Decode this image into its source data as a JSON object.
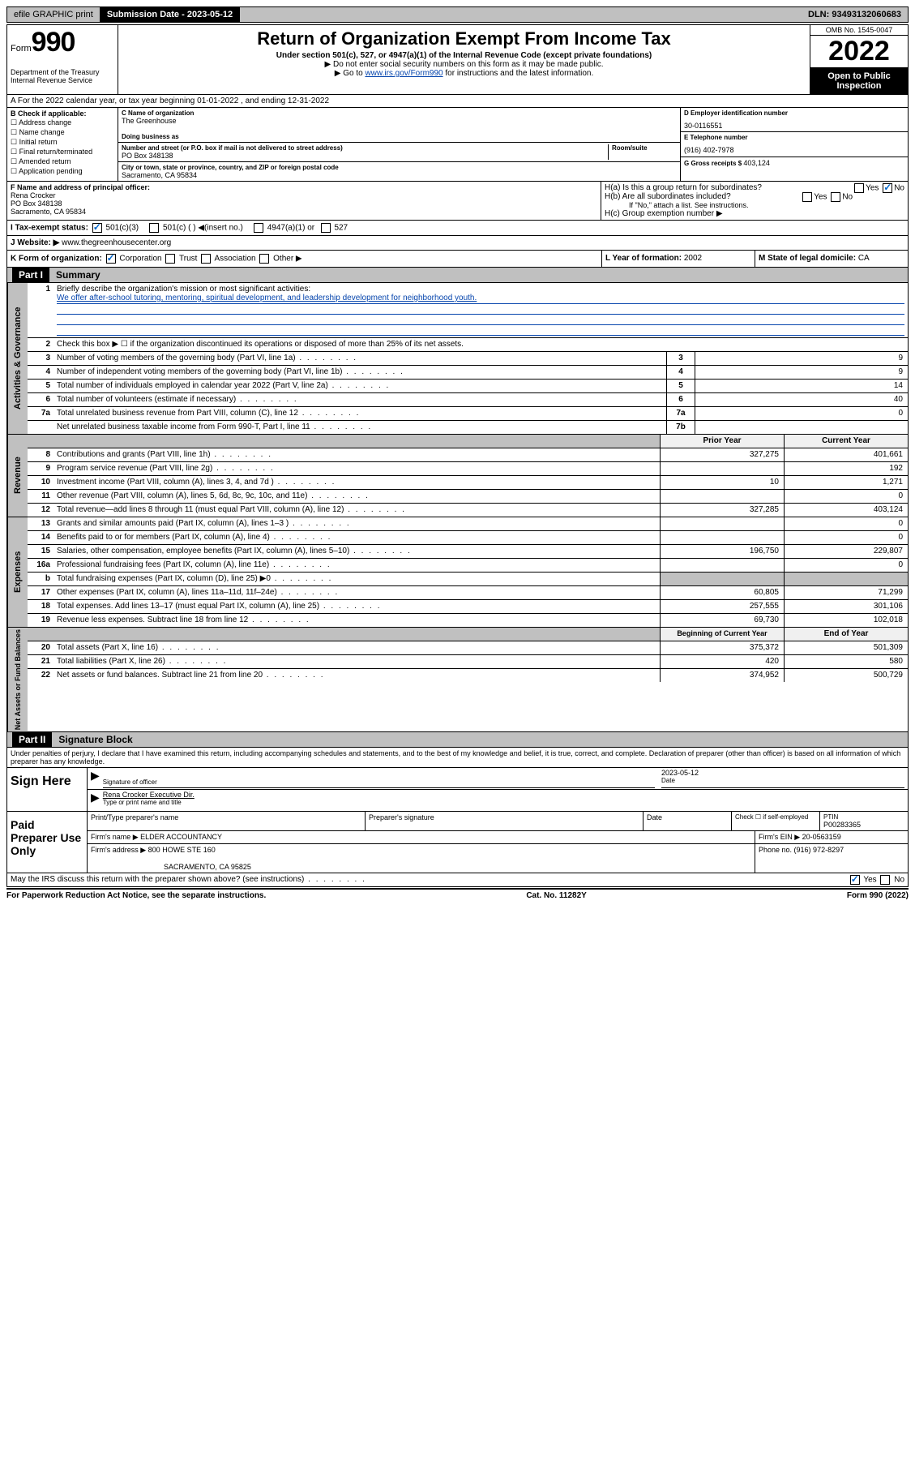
{
  "topbar": {
    "efile": "efile GRAPHIC print",
    "submission_label": "Submission Date - ",
    "submission_date": "2023-05-12",
    "dln_label": "DLN: ",
    "dln": "93493132060683"
  },
  "header": {
    "form_label": "Form",
    "form_number": "990",
    "dept": "Department of the Treasury\nInternal Revenue Service",
    "title": "Return of Organization Exempt From Income Tax",
    "sub": "Under section 501(c), 527, or 4947(a)(1) of the Internal Revenue Code (except private foundations)",
    "note1": "▶ Do not enter social security numbers on this form as it may be made public.",
    "note2_pre": "▶ Go to ",
    "note2_link": "www.irs.gov/Form990",
    "note2_post": " for instructions and the latest information.",
    "omb": "OMB No. 1545-0047",
    "year": "2022",
    "inspection": "Open to Public Inspection"
  },
  "line_a": "A For the 2022 calendar year, or tax year beginning 01-01-2022    , and ending 12-31-2022",
  "section_b": {
    "label": "B Check if applicable:",
    "items": [
      "Address change",
      "Name change",
      "Initial return",
      "Final return/terminated",
      "Amended return",
      "Application pending"
    ]
  },
  "section_c": {
    "name_label": "C Name of organization",
    "name": "The Greenhouse",
    "dba_label": "Doing business as",
    "dba": "",
    "addr_label": "Number and street (or P.O. box if mail is not delivered to street address)",
    "room_label": "Room/suite",
    "addr": "PO Box 348138",
    "city_label": "City or town, state or province, country, and ZIP or foreign postal code",
    "city": "Sacramento, CA  95834"
  },
  "section_d": {
    "ein_label": "D Employer identification number",
    "ein": "30-0116551",
    "phone_label": "E Telephone number",
    "phone": "(916) 402-7978",
    "gross_label": "G Gross receipts $ ",
    "gross": "403,124"
  },
  "section_f": {
    "label": "F  Name and address of principal officer:",
    "name": "Rena Crocker",
    "addr1": "PO Box 348138",
    "addr2": "Sacramento, CA  95834"
  },
  "section_h": {
    "a": "H(a)  Is this a group return for subordinates?",
    "b": "H(b)  Are all subordinates included?",
    "b_note": "If \"No,\" attach a list. See instructions.",
    "c": "H(c)  Group exemption number ▶"
  },
  "section_i": {
    "label": "I   Tax-exempt status:",
    "opt1": "501(c)(3)",
    "opt2": "501(c) (  ) ◀(insert no.)",
    "opt3": "4947(a)(1) or",
    "opt4": "527"
  },
  "section_j": {
    "label": "J   Website: ▶",
    "value": "www.thegreenhousecenter.org"
  },
  "section_k": {
    "label": "K Form of organization:",
    "opts": [
      "Corporation",
      "Trust",
      "Association",
      "Other ▶"
    ]
  },
  "section_l": {
    "label": "L Year of formation: ",
    "value": "2002"
  },
  "section_m": {
    "label": "M State of legal domicile: ",
    "value": "CA"
  },
  "part1": {
    "header": "Part I",
    "title": "Summary"
  },
  "governance": {
    "label": "Activities & Governance",
    "q1": "Briefly describe the organization's mission or most significant activities:",
    "q1_ans": "We offer after-school tutoring, mentoring, spiritual development, and leadership development for neighborhood youth.",
    "q2": "Check this box ▶ ☐  if the organization discontinued its operations or disposed of more than 25% of its net assets.",
    "rows": [
      {
        "n": "3",
        "desc": "Number of voting members of the governing body (Part VI, line 1a)",
        "box": "3",
        "val": "9"
      },
      {
        "n": "4",
        "desc": "Number of independent voting members of the governing body (Part VI, line 1b)",
        "box": "4",
        "val": "9"
      },
      {
        "n": "5",
        "desc": "Total number of individuals employed in calendar year 2022 (Part V, line 2a)",
        "box": "5",
        "val": "14"
      },
      {
        "n": "6",
        "desc": "Total number of volunteers (estimate if necessary)",
        "box": "6",
        "val": "40"
      },
      {
        "n": "7a",
        "desc": "Total unrelated business revenue from Part VIII, column (C), line 12",
        "box": "7a",
        "val": "0"
      },
      {
        "n": "",
        "desc": "Net unrelated business taxable income from Form 990-T, Part I, line 11",
        "box": "7b",
        "val": ""
      }
    ]
  },
  "revenue": {
    "label": "Revenue",
    "header_prior": "Prior Year",
    "header_curr": "Current Year",
    "rows": [
      {
        "n": "8",
        "desc": "Contributions and grants (Part VIII, line 1h)",
        "prior": "327,275",
        "curr": "401,661"
      },
      {
        "n": "9",
        "desc": "Program service revenue (Part VIII, line 2g)",
        "prior": "",
        "curr": "192"
      },
      {
        "n": "10",
        "desc": "Investment income (Part VIII, column (A), lines 3, 4, and 7d )",
        "prior": "10",
        "curr": "1,271"
      },
      {
        "n": "11",
        "desc": "Other revenue (Part VIII, column (A), lines 5, 6d, 8c, 9c, 10c, and 11e)",
        "prior": "",
        "curr": "0"
      },
      {
        "n": "12",
        "desc": "Total revenue—add lines 8 through 11 (must equal Part VIII, column (A), line 12)",
        "prior": "327,285",
        "curr": "403,124"
      }
    ]
  },
  "expenses": {
    "label": "Expenses",
    "rows": [
      {
        "n": "13",
        "desc": "Grants and similar amounts paid (Part IX, column (A), lines 1–3 )",
        "prior": "",
        "curr": "0"
      },
      {
        "n": "14",
        "desc": "Benefits paid to or for members (Part IX, column (A), line 4)",
        "prior": "",
        "curr": "0"
      },
      {
        "n": "15",
        "desc": "Salaries, other compensation, employee benefits (Part IX, column (A), lines 5–10)",
        "prior": "196,750",
        "curr": "229,807"
      },
      {
        "n": "16a",
        "desc": "Professional fundraising fees (Part IX, column (A), line 11e)",
        "prior": "",
        "curr": "0"
      },
      {
        "n": "b",
        "desc": "Total fundraising expenses (Part IX, column (D), line 25) ▶0",
        "prior": "gray",
        "curr": "gray"
      },
      {
        "n": "17",
        "desc": "Other expenses (Part IX, column (A), lines 11a–11d, 11f–24e)",
        "prior": "60,805",
        "curr": "71,299"
      },
      {
        "n": "18",
        "desc": "Total expenses. Add lines 13–17 (must equal Part IX, column (A), line 25)",
        "prior": "257,555",
        "curr": "301,106"
      },
      {
        "n": "19",
        "desc": "Revenue less expenses. Subtract line 18 from line 12",
        "prior": "69,730",
        "curr": "102,018"
      }
    ]
  },
  "netassets": {
    "label": "Net Assets or Fund Balances",
    "header_prior": "Beginning of Current Year",
    "header_curr": "End of Year",
    "rows": [
      {
        "n": "20",
        "desc": "Total assets (Part X, line 16)",
        "prior": "375,372",
        "curr": "501,309"
      },
      {
        "n": "21",
        "desc": "Total liabilities (Part X, line 26)",
        "prior": "420",
        "curr": "580"
      },
      {
        "n": "22",
        "desc": "Net assets or fund balances. Subtract line 21 from line 20",
        "prior": "374,952",
        "curr": "500,729"
      }
    ]
  },
  "part2": {
    "header": "Part II",
    "title": "Signature Block"
  },
  "sig": {
    "declare": "Under penalties of perjury, I declare that I have examined this return, including accompanying schedules and statements, and to the best of my knowledge and belief, it is true, correct, and complete. Declaration of preparer (other than officer) is based on all information of which preparer has any knowledge.",
    "sign_here": "Sign Here",
    "sig_officer": "Signature of officer",
    "date": "2023-05-12",
    "date_label": "Date",
    "officer_name": "Rena Crocker Executive Dir.",
    "type_label": "Type or print name and title"
  },
  "paid": {
    "label": "Paid Preparer Use Only",
    "h_name": "Print/Type preparer's name",
    "h_sig": "Preparer's signature",
    "h_date": "Date",
    "h_check": "Check ☐ if self-employed",
    "h_ptin": "PTIN",
    "ptin": "P00283365",
    "firm_label": "Firm's name    ▶",
    "firm": "ELDER ACCOUNTANCY",
    "ein_label": "Firm's EIN ▶",
    "ein": "20-0563159",
    "addr_label": "Firm's address ▶",
    "addr1": "800 HOWE STE 160",
    "addr2": "SACRAMENTO, CA  95825",
    "phone_label": "Phone no. ",
    "phone": "(916) 972-8297"
  },
  "discuss": "May the IRS discuss this return with the preparer shown above? (see instructions)",
  "footer": {
    "left": "For Paperwork Reduction Act Notice, see the separate instructions.",
    "mid": "Cat. No. 11282Y",
    "right": "Form 990 (2022)"
  }
}
